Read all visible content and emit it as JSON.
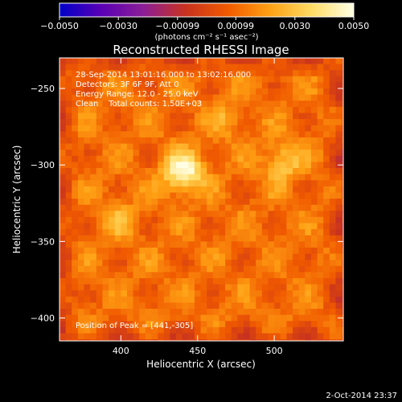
{
  "chart_data": {
    "type": "heatmap",
    "title": "Reconstructed RHESSI Image",
    "xlabel": "Heliocentric X (arcsec)",
    "ylabel": "Heliocentric Y (arcsec)",
    "xlim": [
      360,
      545
    ],
    "ylim": [
      -415,
      -230
    ],
    "x_ticks": [
      400,
      450,
      500
    ],
    "y_ticks": [
      -250,
      -300,
      -350,
      -400
    ],
    "x_tick_labels": [
      "400",
      "450",
      "500"
    ],
    "y_tick_labels": [
      "−250",
      "−300",
      "−350",
      "−400"
    ],
    "colorbar": {
      "range": [
        -0.005,
        0.005
      ],
      "tick_values": [
        -0.005,
        -0.003,
        -0.00099,
        0.00099,
        0.003,
        0.005
      ],
      "tick_labels": [
        "−0.0050",
        "−0.0030",
        "−0.00099",
        "0.00099",
        "0.0030",
        "0.0050"
      ],
      "unit_label": "(photons cm⁻² s⁻¹ asec⁻²)",
      "colors": [
        "#0000c8",
        "#5a00b4",
        "#8c1e96",
        "#c8321e",
        "#f05a00",
        "#ffa014",
        "#ffdc64",
        "#ffffe6"
      ]
    },
    "peaks": [
      {
        "x": 441,
        "y": -305,
        "value": 0.005
      },
      {
        "x": 505,
        "y": -298,
        "value": 0.0032
      },
      {
        "x": 397,
        "y": -335,
        "value": 0.0024
      },
      {
        "x": 470,
        "y": -270,
        "value": 0.0022
      }
    ],
    "background_level": 0.0012,
    "annotations": [
      "28-Sep-2014 13:01:16.000 to 13:02:16.000",
      "Detectors: 3F 6F 9F, Att 0",
      "Energy Range: 12.0 - 25.0 keV",
      "Clean    Total counts: 1.50E+03"
    ],
    "peak_position_text": "Position of Peak = [441,-305]"
  },
  "footer": {
    "timestamp": "2-Oct-2014 23:37"
  }
}
